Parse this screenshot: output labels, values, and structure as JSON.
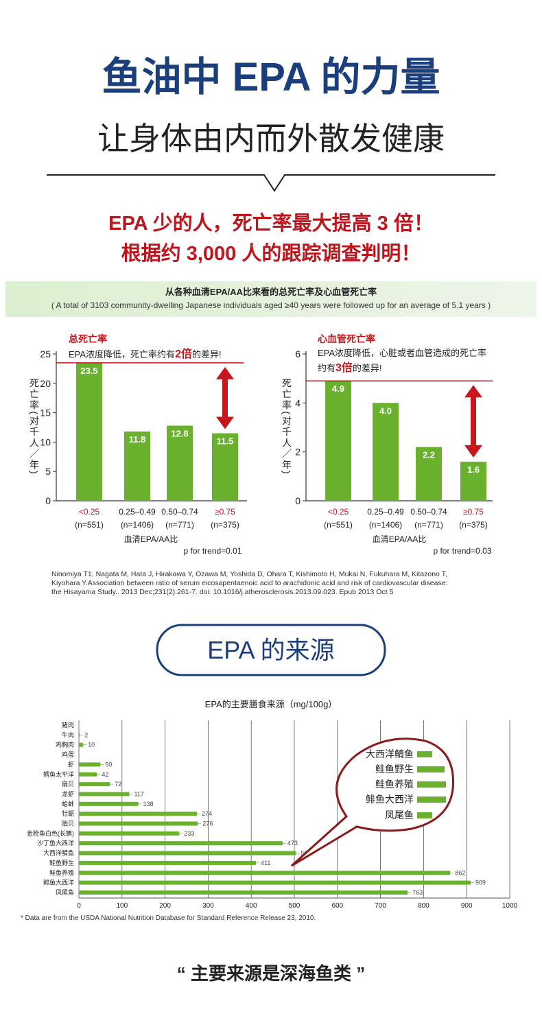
{
  "header": {
    "title": "鱼油中 EPA 的力量",
    "subtitle": "让身体由内而外散发健康"
  },
  "claims": [
    "EPA 少的人，死亡率最大提高 3 倍！",
    "根据约 3,000 人的跟踪调查判明！"
  ],
  "study": {
    "title": "从各种血清EPA/AA比来看的总死亡率及心血管死亡率",
    "subtitle": "( A total of 3103 community-dwelling Japanese individuals aged ≥40 years were followed up for an average of 5.1 years )",
    "citation": [
      "Ninomiya T1, Nagata M, Hata J, Hirakawa Y, Ozawa M, Yoshida D, Ohara T, Kishimoto H, Mukai N, Fukuhara M, Kitazono T,",
      "Kiyohara Y.Association between ratio of serum eicosapentaenoic acid to arachidonic acid and risk of cardiovascular disease:",
      "the Hisayama Study.. 2013 Dec;231(2):261-7. doi: 10.1016/j.atherosclerosis.2013.09.023. Epub 2013 Oct 5"
    ]
  },
  "section_title": "EPA 的来源",
  "chart_data": [
    {
      "type": "bar",
      "title": "总死亡率",
      "annotation": [
        "EPA浓度降低，死亡率约有",
        "2倍",
        "的差异!"
      ],
      "categories": [
        "<0.25",
        "0.25–0.49",
        "0.50–0.74",
        "≥0.75"
      ],
      "sublabels": [
        "(n=551)",
        "(n=1406)",
        "(n=771)",
        "(n=375)"
      ],
      "values": [
        23.5,
        11.8,
        12.8,
        11.5
      ],
      "color": "#6ab22e",
      "ylim": [
        0,
        25
      ],
      "yticks": [
        0,
        5,
        10,
        15,
        20,
        25
      ],
      "ylabel": "死亡率(对千人／年)",
      "xlabel": "血清EPA/AA比",
      "note": "p for trend=0.01"
    },
    {
      "type": "bar",
      "title": "心血管死亡率",
      "annotation": [
        "EPA浓度降低，心脏或者血管造成的死亡率",
        "约有",
        "3倍",
        "的差异!"
      ],
      "categories": [
        "<0.25",
        "0.25–0.49",
        "0.50–0.74",
        "≥0.75"
      ],
      "sublabels": [
        "(n=551)",
        "(n=1406)",
        "(n=771)",
        "(n=375)"
      ],
      "values": [
        4.9,
        4.0,
        2.2,
        1.6
      ],
      "value_labels": [
        "4.9",
        "4.0",
        "2.2",
        "1.6"
      ],
      "color": "#6ab22e",
      "ylim": [
        0,
        6
      ],
      "yticks": [
        0,
        2,
        4,
        6
      ],
      "ylabel": "死亡率(对千人／年)",
      "xlabel": "血清EPA/AA比",
      "note": "p for trend=0.03"
    },
    {
      "type": "hbar",
      "title": "EPA的主要膳食来源（mg/100g）",
      "categories": [
        "猪肉",
        "牛肉",
        "鸡胸肉",
        "鸡蛋",
        "虾",
        "鳕鱼太平洋",
        "扇贝",
        "龙虾",
        "蛤蚌",
        "牡蛎",
        "贻贝",
        "金枪鱼白色(长鳍)",
        "沙丁鱼大西洋",
        "大西洋鲭鱼",
        "鲑鱼野生",
        "鲑鱼养殖",
        "鲱鱼大西洋",
        "凤尾鱼"
      ],
      "values": [
        null,
        2,
        10,
        null,
        50,
        42,
        72,
        117,
        138,
        274,
        276,
        233,
        473,
        504,
        411,
        862,
        909,
        763
      ],
      "color": "#6ab22e",
      "xlim": [
        0,
        1000
      ],
      "xticks": [
        0,
        100,
        200,
        300,
        400,
        500,
        600,
        700,
        800,
        900,
        1000
      ],
      "grid": true,
      "footnote": "*  Data are from the USDA National Nutrition Database for Standard Reference Release 23, 2010."
    }
  ],
  "quote": "“ 主要来源是深海鱼类 ”"
}
